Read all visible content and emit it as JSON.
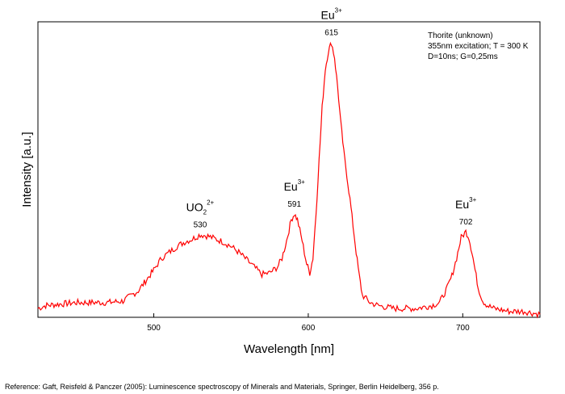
{
  "chart_data": {
    "type": "line",
    "xlabel": "Wavelength [nm]",
    "ylabel": "Intensity [a.u.]",
    "xlim": [
      425,
      750
    ],
    "ylim": [
      0,
      1.0
    ],
    "xticks": [
      500,
      600,
      700
    ],
    "grid": false,
    "legend": "none",
    "info_box": [
      "Thorite (unknown)",
      "355nm excitation; T = 300 K",
      "D=10ns; G=0,25ms"
    ],
    "series": [
      {
        "color": "#ff0000",
        "x": [
          425,
          430,
          440,
          450,
          460,
          470,
          480,
          490,
          500,
          505,
          510,
          515,
          520,
          525,
          530,
          535,
          540,
          545,
          550,
          555,
          560,
          565,
          570,
          575,
          580,
          583,
          586,
          589,
          591,
          593,
          596,
          599,
          601,
          603,
          605,
          607,
          609,
          611,
          613,
          615,
          617,
          619,
          621,
          623,
          625,
          627,
          629,
          631,
          633,
          635,
          640,
          645,
          650,
          655,
          660,
          665,
          670,
          675,
          680,
          685,
          690,
          693,
          696,
          699,
          702,
          704,
          706,
          708,
          710,
          713,
          716,
          720,
          725,
          730,
          735,
          740,
          745,
          750
        ],
        "y": [
          0.03,
          0.04,
          0.045,
          0.05,
          0.05,
          0.05,
          0.055,
          0.09,
          0.16,
          0.2,
          0.22,
          0.24,
          0.255,
          0.265,
          0.28,
          0.275,
          0.265,
          0.255,
          0.24,
          0.22,
          0.195,
          0.17,
          0.145,
          0.15,
          0.17,
          0.2,
          0.26,
          0.33,
          0.35,
          0.33,
          0.26,
          0.18,
          0.15,
          0.2,
          0.35,
          0.53,
          0.71,
          0.84,
          0.9,
          0.93,
          0.88,
          0.78,
          0.66,
          0.56,
          0.48,
          0.4,
          0.31,
          0.22,
          0.14,
          0.075,
          0.05,
          0.04,
          0.035,
          0.03,
          0.03,
          0.03,
          0.03,
          0.035,
          0.04,
          0.05,
          0.1,
          0.14,
          0.2,
          0.27,
          0.29,
          0.27,
          0.22,
          0.16,
          0.1,
          0.055,
          0.04,
          0.03,
          0.025,
          0.02,
          0.02,
          0.02,
          0.015,
          0.01
        ]
      }
    ],
    "annotations": [
      {
        "x": 530,
        "y": 0.28,
        "label": "530",
        "species": "UO",
        "sub": "2",
        "sup": "2+"
      },
      {
        "x": 591,
        "y": 0.35,
        "label": "591",
        "species": "Eu",
        "sub": "",
        "sup": "3+"
      },
      {
        "x": 615,
        "y": 0.93,
        "label": "615",
        "species": "Eu",
        "sub": "",
        "sup": "3+"
      },
      {
        "x": 702,
        "y": 0.29,
        "label": "702",
        "species": "Eu",
        "sub": "",
        "sup": "3+"
      }
    ]
  },
  "reference": "Reference: Gaft, Reisfeld & Panczer (2005): Luminescence spectroscopy of Minerals and Materials, Springer, Berlin Heidelberg, 356 p."
}
